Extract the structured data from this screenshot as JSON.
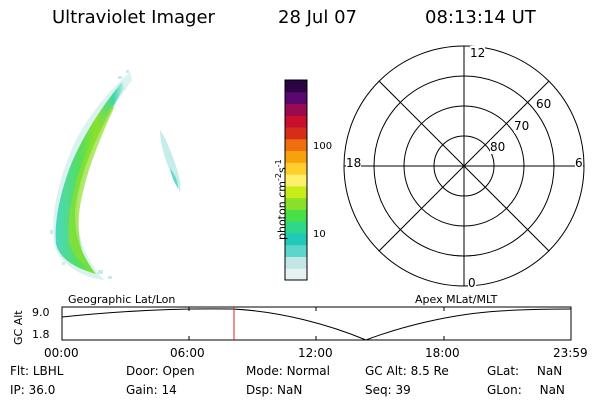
{
  "header": {
    "title": "Ultraviolet Imager",
    "date": "28 Jul 07",
    "time": "08:13:14 UT"
  },
  "colorbar": {
    "unit_label": "photon cm",
    "unit_exp1": "-2",
    "unit_mid": "s",
    "unit_exp2": "-1",
    "ticks": [
      "100",
      "10"
    ],
    "colors": [
      "#e6f2f2",
      "#c2e6e6",
      "#5ad6cc",
      "#22c8b8",
      "#2ed888",
      "#48e048",
      "#8ae028",
      "#c8ec18",
      "#fff06c",
      "#ffce2c",
      "#f6a20c",
      "#ee6e10",
      "#d62c1a",
      "#c8102c",
      "#9a0a50",
      "#5a0870",
      "#2a0444"
    ]
  },
  "polar": {
    "label_top": "12",
    "label_left": "18",
    "label_right": "6",
    "label_bottom": "0",
    "ring_labels": [
      "60",
      "70",
      "80"
    ]
  },
  "timeline": {
    "left_title": "Geographic Lat/Lon",
    "right_title": "Apex MLat/MLT",
    "ylabel": "GC Alt",
    "ytick_top": "9.0",
    "ytick_bottom": "1.8",
    "xticks": [
      "00:00",
      "06:00",
      "12:00",
      "18:00",
      "23:59"
    ],
    "marker_color": "#e02020"
  },
  "info": {
    "flt_label": "Flt:",
    "flt_value": "LBHL",
    "ip_label": "IP:",
    "ip_value": "36.0",
    "door_label": "Door:",
    "door_value": "Open",
    "gain_label": "Gain:",
    "gain_value": "14",
    "mode_label": "Mode:",
    "mode_value": "Normal",
    "dsp_label": "Dsp:",
    "dsp_value": "NaN",
    "gcalt_label": "GC Alt:",
    "gcalt_value": "8.5 Re",
    "seq_label": "Seq:",
    "seq_value": "39",
    "glat_label": "GLat:",
    "glat_value": "NaN",
    "glon_label": "GLon:",
    "glon_value": "NaN"
  }
}
